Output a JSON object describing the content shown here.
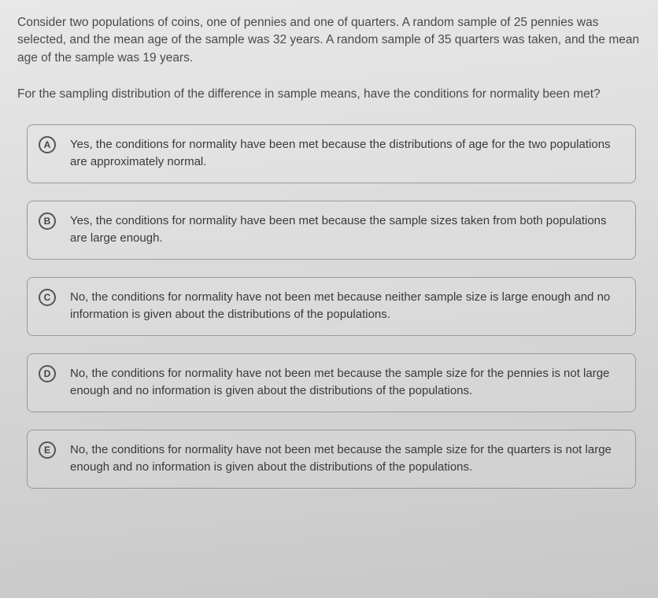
{
  "intro": "Consider two populations of coins, one of pennies and one of quarters. A random sample of 25 pennies was selected, and the mean age of the sample was 32 years. A random sample of 35 quarters was taken, and the mean age of the sample was 19 years.",
  "question": "For the sampling distribution of the difference in sample means, have the conditions for normality been met?",
  "options": {
    "a": {
      "letter": "A",
      "text": "Yes, the conditions for normality have been met because the distributions of age for the two populations are approximately normal."
    },
    "b": {
      "letter": "B",
      "text": "Yes, the conditions for normality have been met because the sample sizes taken from both populations are large enough."
    },
    "c": {
      "letter": "C",
      "text": "No, the conditions for normality have not been met because neither sample size is large enough and no information is given about the distributions of the populations."
    },
    "d": {
      "letter": "D",
      "text": "No, the conditions for normality have not been met because the sample size for the pennies is not large enough and no information is given about the distributions of the populations."
    },
    "e": {
      "letter": "E",
      "text": "No, the conditions for normality have not been met because the sample size for the quarters is not large enough and no information is given about the distributions of the populations."
    }
  }
}
